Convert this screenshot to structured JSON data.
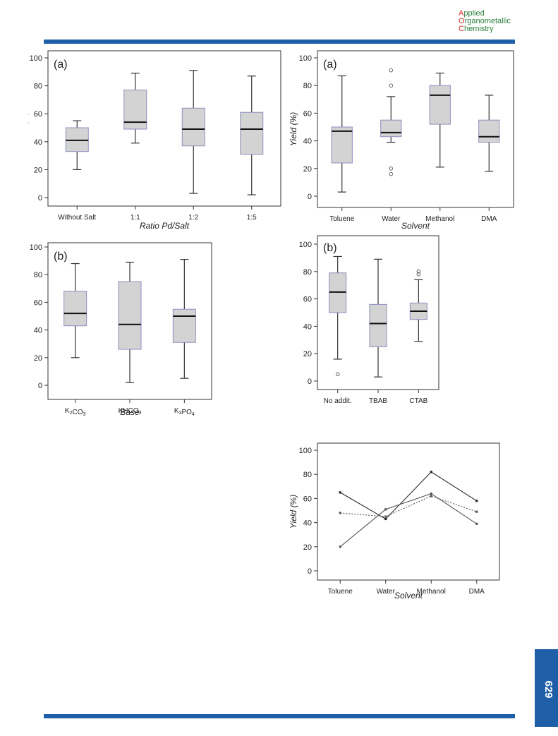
{
  "journal": {
    "line1_cap": "A",
    "line1_rest": "pplied",
    "line2_cap": "O",
    "line2_rest": "rganometallic",
    "line3_cap": "C",
    "line3_rest": "hemistry"
  },
  "page_number": "629",
  "chart_data": [
    {
      "id": "ratio",
      "type": "boxplot",
      "panel_label": "(a)",
      "xlabel": "Ratio Pd/Salt",
      "ylabel": "Yield (%)",
      "ylim": [
        0,
        100
      ],
      "yticks": [
        "0",
        "20",
        "40",
        "60",
        "80",
        "100"
      ],
      "categories": [
        "Without Salt",
        "1:1",
        "1:2",
        "1:5"
      ],
      "boxes": [
        {
          "min": 20,
          "q1": 33,
          "median": 41,
          "q3": 50,
          "max": 55,
          "outliers": []
        },
        {
          "min": 39,
          "q1": 49,
          "median": 54,
          "q3": 77,
          "max": 89,
          "outliers": []
        },
        {
          "min": 3,
          "q1": 37,
          "median": 49,
          "q3": 64,
          "max": 91,
          "outliers": []
        },
        {
          "min": 2,
          "q1": 31,
          "median": 49,
          "q3": 61,
          "max": 87,
          "outliers": []
        }
      ]
    },
    {
      "id": "solvent",
      "type": "boxplot",
      "panel_label": "(a)",
      "xlabel": "Solvent",
      "ylabel": "Yield (%)",
      "ylim": [
        0,
        100
      ],
      "yticks": [
        "0",
        "20",
        "40",
        "60",
        "80",
        "100"
      ],
      "categories": [
        "Toluene",
        "Water",
        "Methanol",
        "DMA"
      ],
      "boxes": [
        {
          "min": 3,
          "q1": 24,
          "median": 47,
          "q3": 50,
          "max": 87,
          "outliers": []
        },
        {
          "min": 39,
          "q1": 43,
          "median": 46,
          "q3": 55,
          "max": 72,
          "outliers": [
            91,
            80,
            20,
            16
          ]
        },
        {
          "min": 21,
          "q1": 52,
          "median": 73,
          "q3": 80,
          "max": 89,
          "outliers": []
        },
        {
          "min": 18,
          "q1": 39,
          "median": 43,
          "q3": 55,
          "max": 73,
          "outliers": []
        }
      ]
    },
    {
      "id": "base",
      "type": "boxplot",
      "panel_label": "(b)",
      "xlabel": "Base",
      "ylabel": "",
      "ylim": [
        0,
        100
      ],
      "yticks": [
        "0",
        "20",
        "40",
        "60",
        "80",
        "100"
      ],
      "categories": [
        "K2CO3",
        "KHCO3",
        "K3PO4"
      ],
      "boxes": [
        {
          "min": 20,
          "q1": 43,
          "median": 52,
          "q3": 68,
          "max": 88,
          "outliers": []
        },
        {
          "min": 2,
          "q1": 26,
          "median": 44,
          "q3": 75,
          "max": 89,
          "outliers": []
        },
        {
          "min": 5,
          "q1": 31,
          "median": 50,
          "q3": 55,
          "max": 91,
          "outliers": []
        }
      ]
    },
    {
      "id": "additive",
      "type": "boxplot",
      "panel_label": "(b)",
      "xlabel": "",
      "ylabel": "",
      "ylim": [
        0,
        100
      ],
      "yticks": [
        "0",
        "20",
        "40",
        "60",
        "80",
        "100"
      ],
      "categories": [
        "No addit.",
        "TBAB",
        "CTAB"
      ],
      "boxes": [
        {
          "min": 16,
          "q1": 50,
          "median": 65,
          "q3": 79,
          "max": 91,
          "outliers": [
            5
          ]
        },
        {
          "min": 3,
          "q1": 25,
          "median": 42,
          "q3": 56,
          "max": 89,
          "outliers": []
        },
        {
          "min": 29,
          "q1": 45,
          "median": 51,
          "q3": 57,
          "max": 74,
          "outliers": [
            80,
            78
          ]
        }
      ]
    },
    {
      "id": "interaction",
      "type": "line",
      "xlabel": "Solvent",
      "ylabel": "Yield (%)",
      "ylim": [
        0,
        100
      ],
      "yticks": [
        "0",
        "20",
        "40",
        "60",
        "80",
        "100"
      ],
      "categories": [
        "Toluene",
        "Water",
        "Methanol",
        "DMA"
      ],
      "series": [
        {
          "values": [
            65,
            43,
            82,
            58
          ],
          "style": "solid",
          "color": "#222222"
        },
        {
          "values": [
            20,
            51,
            64,
            39
          ],
          "style": "solid",
          "color": "#555555"
        },
        {
          "values": [
            48,
            45,
            62,
            49
          ],
          "style": "dotted",
          "color": "#555555"
        }
      ]
    }
  ]
}
